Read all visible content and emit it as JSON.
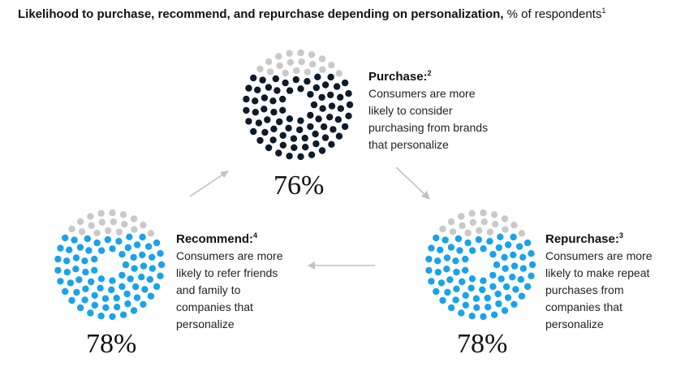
{
  "chart_data": {
    "type": "dot-circle",
    "title": "Likelihood to purchase, recommend, and repurchase depending on personalization,",
    "subtitle": "% of respondents",
    "title_footnote": "1",
    "colors": {
      "filled_purchase": "#0d1b2a",
      "filled_other": "#1aa3e8",
      "unfilled": "#c9c9c9",
      "arrow": "#c2c2c2"
    },
    "items": [
      {
        "key": "purchase",
        "label": "Purchase:",
        "footnote": "2",
        "description": "Consumers are more\nlikely to consider\npurchasing from brands\nthat personalize",
        "value": 76,
        "value_label": "76%"
      },
      {
        "key": "repurchase",
        "label": "Repurchase:",
        "footnote": "3",
        "description": "Consumers are more\nlikely to make repeat\npurchases from\ncompanies that\npersonalize",
        "value": 78,
        "value_label": "78%"
      },
      {
        "key": "recommend",
        "label": "Recommend:",
        "footnote": "4",
        "description": "Consumers are more\nlikely to refer friends\nand family to\ncompanies that\npersonalize",
        "value": 78,
        "value_label": "78%"
      }
    ]
  }
}
